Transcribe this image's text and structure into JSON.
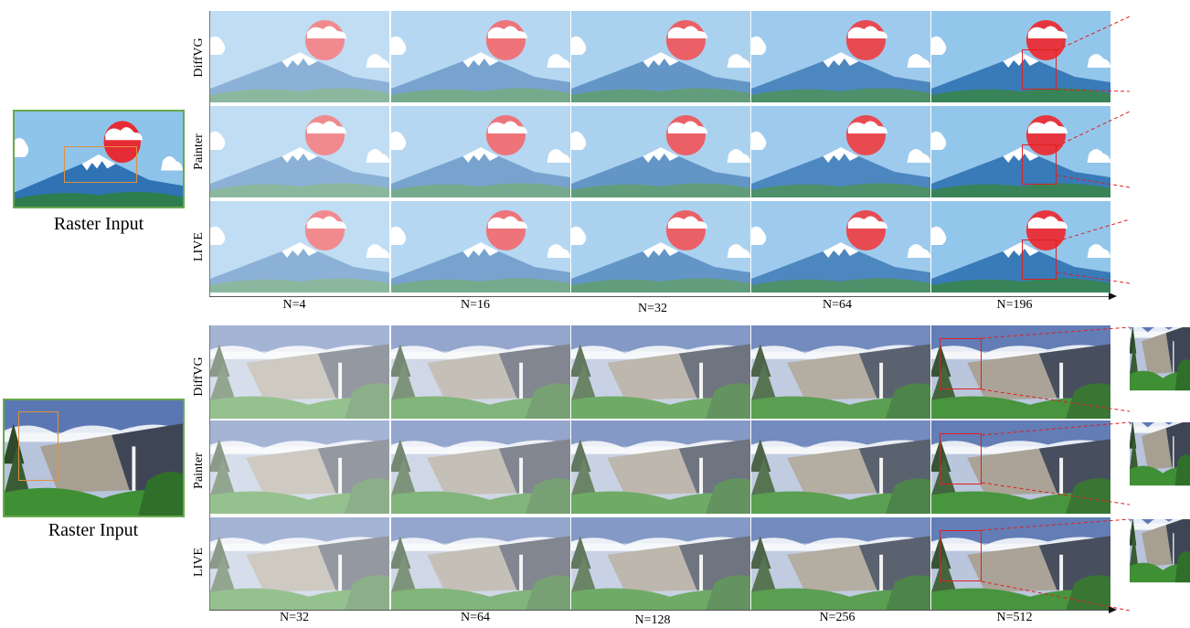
{
  "top": {
    "caption": "Raster Input",
    "rows": [
      "DiffVG",
      "Painter",
      "LIVE"
    ],
    "n_labels": [
      "N=4",
      "N=16",
      "N=32",
      "N=64",
      "N=196"
    ]
  },
  "bottom": {
    "caption": "Raster Input",
    "rows": [
      "DiffVG",
      "Painter",
      "LIVE"
    ],
    "n_labels": [
      "N=32",
      "N=64",
      "N=128",
      "N=256",
      "N=512"
    ]
  }
}
